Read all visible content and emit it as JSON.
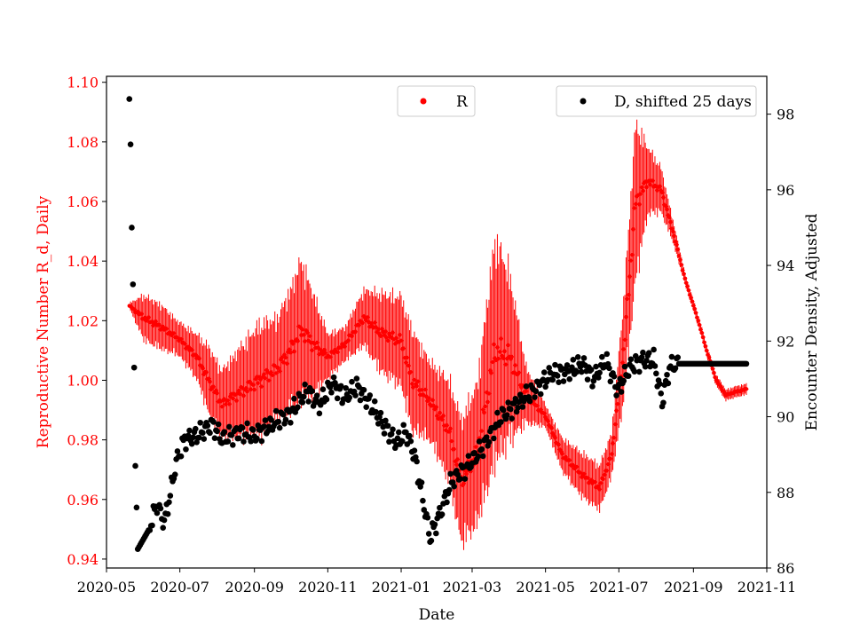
{
  "chart_data": {
    "type": "scatter",
    "title": "",
    "xlabel": "Date",
    "ylabel_left": "Reproductive Number R_d, Daily",
    "ylabel_right": "Encounter Density, Adjusted",
    "x_ticks": [
      "2020-05",
      "2020-07",
      "2020-09",
      "2020-11",
      "2021-01",
      "2021-03",
      "2021-05",
      "2021-07",
      "2021-09",
      "2021-11"
    ],
    "y_left_ticks": [
      "0.94",
      "0.96",
      "0.98",
      "1.00",
      "1.02",
      "1.04",
      "1.06",
      "1.08",
      "1.10"
    ],
    "y_right_ticks": [
      "86",
      "88",
      "90",
      "92",
      "94",
      "96",
      "98"
    ],
    "xlim": [
      "2020-05-01",
      "2021-11-01"
    ],
    "ylim_left": [
      0.937,
      1.102
    ],
    "ylim_right": [
      86.0,
      99.0
    ],
    "colors": {
      "R": "#ff0000",
      "D": "#000000",
      "axis_left": "#ff0000"
    },
    "legend_R": "R",
    "legend_D": "D, shifted 25 days",
    "series_R_anchors": [
      [
        "2020-05-20",
        1.025,
        0.001
      ],
      [
        "2020-06-01",
        1.021,
        0.008
      ],
      [
        "2020-06-15",
        1.018,
        0.008
      ],
      [
        "2020-06-30",
        1.014,
        0.006
      ],
      [
        "2020-07-15",
        1.008,
        0.008
      ],
      [
        "2020-07-25",
        1.0,
        0.012
      ],
      [
        "2020-08-05",
        0.992,
        0.012
      ],
      [
        "2020-08-20",
        0.996,
        0.016
      ],
      [
        "2020-09-05",
        1.0,
        0.02
      ],
      [
        "2020-09-20",
        1.004,
        0.018
      ],
      [
        "2020-10-01",
        1.01,
        0.022
      ],
      [
        "2020-10-10",
        1.017,
        0.025
      ],
      [
        "2020-10-20",
        1.012,
        0.018
      ],
      [
        "2020-11-01",
        1.008,
        0.008
      ],
      [
        "2020-11-15",
        1.012,
        0.006
      ],
      [
        "2020-12-01",
        1.021,
        0.01
      ],
      [
        "2020-12-15",
        1.016,
        0.014
      ],
      [
        "2021-01-01",
        1.013,
        0.016
      ],
      [
        "2021-01-10",
        1.0,
        0.018
      ],
      [
        "2021-01-25",
        0.993,
        0.014
      ],
      [
        "2021-02-10",
        0.983,
        0.018
      ],
      [
        "2021-02-20",
        0.966,
        0.022
      ],
      [
        "2021-03-05",
        0.975,
        0.025
      ],
      [
        "2021-03-20",
        1.01,
        0.04
      ],
      [
        "2021-04-01",
        1.008,
        0.03
      ],
      [
        "2021-04-15",
        0.995,
        0.01
      ],
      [
        "2021-05-01",
        0.988,
        0.004
      ],
      [
        "2021-05-15",
        0.975,
        0.006
      ],
      [
        "2021-06-01",
        0.968,
        0.008
      ],
      [
        "2021-06-15",
        0.964,
        0.008
      ],
      [
        "2021-06-25",
        0.975,
        0.008
      ],
      [
        "2021-07-05",
        1.01,
        0.018
      ],
      [
        "2021-07-15",
        1.06,
        0.028
      ],
      [
        "2021-07-25",
        1.067,
        0.012
      ],
      [
        "2021-08-05",
        1.064,
        0.008
      ],
      [
        "2021-08-15",
        1.05,
        0.004
      ],
      [
        "2021-08-25",
        1.034,
        0.002
      ],
      [
        "2021-09-05",
        1.02,
        0.002
      ],
      [
        "2021-09-12",
        1.01,
        0.002
      ],
      [
        "2021-09-20",
        1.0,
        0.002
      ],
      [
        "2021-09-28",
        0.995,
        0.002
      ],
      [
        "2021-10-05",
        0.996,
        0.002
      ],
      [
        "2021-10-15",
        0.997,
        0.002
      ]
    ],
    "series_D_anchors": [
      [
        "2020-05-20",
        98.4
      ],
      [
        "2020-05-21",
        97.2
      ],
      [
        "2020-05-22",
        95.0
      ],
      [
        "2020-05-23",
        93.5
      ],
      [
        "2020-05-24",
        91.3
      ],
      [
        "2020-05-25",
        88.7
      ],
      [
        "2020-05-27",
        86.5
      ],
      [
        "2020-06-05",
        87.0
      ],
      [
        "2020-06-12",
        87.7
      ],
      [
        "2020-06-18",
        87.2
      ],
      [
        "2020-06-22",
        87.8
      ],
      [
        "2020-06-28",
        88.8
      ],
      [
        "2020-07-05",
        89.4
      ],
      [
        "2020-07-15",
        89.5
      ],
      [
        "2020-07-28",
        89.8
      ],
      [
        "2020-08-05",
        89.4
      ],
      [
        "2020-08-20",
        89.6
      ],
      [
        "2020-09-01",
        89.5
      ],
      [
        "2020-09-10",
        89.7
      ],
      [
        "2020-09-20",
        89.9
      ],
      [
        "2020-10-01",
        90.1
      ],
      [
        "2020-10-15",
        90.7
      ],
      [
        "2020-10-25",
        90.3
      ],
      [
        "2020-11-05",
        90.9
      ],
      [
        "2020-11-15",
        90.5
      ],
      [
        "2020-11-25",
        90.8
      ],
      [
        "2020-12-05",
        90.4
      ],
      [
        "2020-12-15",
        89.9
      ],
      [
        "2020-12-22",
        89.6
      ],
      [
        "2020-12-28",
        89.3
      ],
      [
        "2021-01-05",
        89.6
      ],
      [
        "2021-01-12",
        89.0
      ],
      [
        "2021-01-18",
        88.0
      ],
      [
        "2021-01-25",
        86.8
      ],
      [
        "2021-02-03",
        87.5
      ],
      [
        "2021-02-12",
        88.3
      ],
      [
        "2021-02-22",
        88.6
      ],
      [
        "2021-03-03",
        88.9
      ],
      [
        "2021-03-12",
        89.3
      ],
      [
        "2021-03-25",
        90.0
      ],
      [
        "2021-04-10",
        90.4
      ],
      [
        "2021-04-25",
        90.8
      ],
      [
        "2021-05-05",
        91.1
      ],
      [
        "2021-05-20",
        91.2
      ],
      [
        "2021-06-01",
        91.4
      ],
      [
        "2021-06-10",
        91.0
      ],
      [
        "2021-06-20",
        91.5
      ],
      [
        "2021-06-30",
        90.7
      ],
      [
        "2021-07-10",
        91.3
      ],
      [
        "2021-07-20",
        91.5
      ],
      [
        "2021-07-30",
        91.5
      ],
      [
        "2021-08-06",
        90.4
      ],
      [
        "2021-08-12",
        91.3
      ],
      [
        "2021-08-18",
        91.4
      ],
      [
        "2021-10-15",
        91.4
      ]
    ]
  }
}
